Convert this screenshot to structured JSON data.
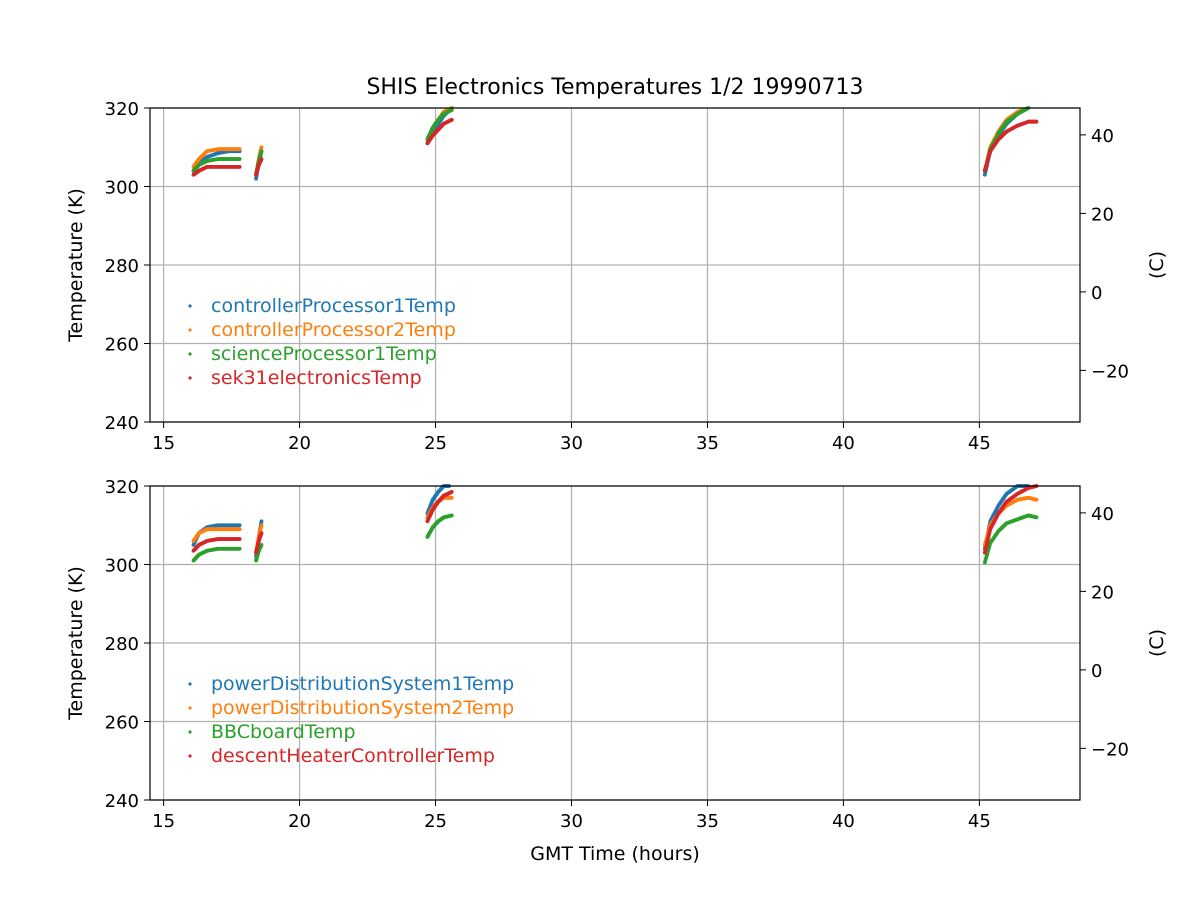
{
  "figure": {
    "title": "SHIS Electronics Temperatures 1/2 19990713",
    "xlabel": "GMT Time (hours)"
  },
  "chart_data": [
    {
      "type": "scatter",
      "panel": "top",
      "ylabel": "Temperature (K)",
      "ylabel_right": "(C)",
      "xlim": [
        14.5,
        48.7
      ],
      "ylim": [
        240,
        320
      ],
      "ylim_right": [
        -33.15,
        46.85
      ],
      "xticks": [
        "15",
        "20",
        "25",
        "30",
        "35",
        "40",
        "45"
      ],
      "yticks": [
        "240",
        "260",
        "280",
        "300",
        "320"
      ],
      "yticks_right": [
        "−20",
        "0",
        "20",
        "40"
      ],
      "grid": true,
      "legend_position": "lower-left",
      "series": [
        {
          "name": "controllerProcessor1Temp",
          "color": "#1f77b4",
          "segments": [
            {
              "x": [
                16.1,
                16.3,
                16.6,
                17.0,
                17.4,
                17.8
              ],
              "y": [
                304,
                306,
                307.5,
                308.5,
                309,
                309
              ]
            },
            {
              "x": [
                18.4,
                18.5,
                18.6
              ],
              "y": [
                302,
                306,
                309
              ]
            },
            {
              "x": [
                24.7,
                24.9,
                25.1,
                25.3,
                25.6
              ],
              "y": [
                311,
                314,
                316,
                318,
                320
              ]
            },
            {
              "x": [
                45.2,
                45.4,
                45.7,
                46.0,
                46.4,
                46.8
              ],
              "y": [
                303,
                309,
                313,
                316,
                318.5,
                320
              ]
            }
          ]
        },
        {
          "name": "controllerProcessor2Temp",
          "color": "#ff7f0e",
          "segments": [
            {
              "x": [
                16.1,
                16.3,
                16.6,
                17.0,
                17.4,
                17.8
              ],
              "y": [
                305,
                307,
                309,
                309.5,
                309.5,
                309.5
              ]
            },
            {
              "x": [
                18.4,
                18.5,
                18.6
              ],
              "y": [
                303,
                307,
                310
              ]
            },
            {
              "x": [
                24.7,
                24.9,
                25.1,
                25.3,
                25.6
              ],
              "y": [
                312,
                315,
                317,
                319,
                320
              ]
            },
            {
              "x": [
                45.2,
                45.4,
                45.7,
                46.0,
                46.4,
                46.8
              ],
              "y": [
                304,
                310,
                314,
                317,
                319,
                320
              ]
            }
          ]
        },
        {
          "name": "scienceProcessor1Temp",
          "color": "#2ca02c",
          "segments": [
            {
              "x": [
                16.1,
                16.3,
                16.6,
                17.0,
                17.4,
                17.8
              ],
              "y": [
                304,
                305.5,
                306.5,
                307,
                307,
                307
              ]
            },
            {
              "x": [
                18.4,
                18.5,
                18.6
              ],
              "y": [
                303,
                306.5,
                309
              ]
            },
            {
              "x": [
                24.7,
                24.9,
                25.1,
                25.3,
                25.6
              ],
              "y": [
                312,
                315,
                317,
                318.5,
                319.5
              ]
            },
            {
              "x": [
                45.2,
                45.4,
                45.7,
                46.0,
                46.4,
                46.8
              ],
              "y": [
                304,
                309.5,
                313.5,
                316.5,
                318.5,
                320
              ]
            }
          ]
        },
        {
          "name": "sek31electronicsTemp",
          "color": "#d62728",
          "segments": [
            {
              "x": [
                16.1,
                16.3,
                16.6,
                17.0,
                17.4,
                17.8
              ],
              "y": [
                303,
                304,
                305,
                305,
                305,
                305
              ]
            },
            {
              "x": [
                18.4,
                18.5,
                18.6
              ],
              "y": [
                303,
                305.5,
                307
              ]
            },
            {
              "x": [
                24.7,
                24.9,
                25.1,
                25.3,
                25.6
              ],
              "y": [
                311,
                313,
                314.5,
                316,
                317
              ]
            },
            {
              "x": [
                45.2,
                45.4,
                45.7,
                46.0,
                46.4,
                46.8,
                47.1
              ],
              "y": [
                304,
                309,
                312,
                314,
                315.5,
                316.5,
                316.5
              ]
            }
          ]
        }
      ]
    },
    {
      "type": "scatter",
      "panel": "bottom",
      "ylabel": "Temperature (K)",
      "ylabel_right": "(C)",
      "xlim": [
        14.5,
        48.7
      ],
      "ylim": [
        240,
        320
      ],
      "ylim_right": [
        -33.15,
        46.85
      ],
      "xticks": [
        "15",
        "20",
        "25",
        "30",
        "35",
        "40",
        "45"
      ],
      "yticks": [
        "240",
        "260",
        "280",
        "300",
        "320"
      ],
      "yticks_right": [
        "−20",
        "0",
        "20",
        "40"
      ],
      "grid": true,
      "legend_position": "lower-left",
      "series": [
        {
          "name": "powerDistributionSystem1Temp",
          "color": "#1f77b4",
          "segments": [
            {
              "x": [
                16.1,
                16.3,
                16.6,
                17.0,
                17.4,
                17.8
              ],
              "y": [
                305,
                308,
                309.5,
                310,
                310,
                310
              ]
            },
            {
              "x": [
                18.4,
                18.5,
                18.6
              ],
              "y": [
                302,
                307,
                311
              ]
            },
            {
              "x": [
                24.7,
                24.9,
                25.1,
                25.3,
                25.5
              ],
              "y": [
                313,
                316.5,
                318.5,
                320,
                320
              ]
            },
            {
              "x": [
                45.2,
                45.4,
                45.7,
                46.0,
                46.4,
                46.8
              ],
              "y": [
                304,
                311,
                315,
                318,
                320,
                320
              ]
            }
          ]
        },
        {
          "name": "powerDistributionSystem2Temp",
          "color": "#ff7f0e",
          "segments": [
            {
              "x": [
                16.1,
                16.3,
                16.6,
                17.0,
                17.4,
                17.8
              ],
              "y": [
                306,
                308,
                309,
                309,
                309,
                309
              ]
            },
            {
              "x": [
                18.4,
                18.5,
                18.6
              ],
              "y": [
                303,
                307,
                310
              ]
            },
            {
              "x": [
                24.7,
                24.9,
                25.1,
                25.3,
                25.6
              ],
              "y": [
                312,
                314.5,
                316,
                317,
                317
              ]
            },
            {
              "x": [
                45.2,
                45.4,
                45.7,
                46.0,
                46.4,
                46.8,
                47.1
              ],
              "y": [
                305,
                310,
                313,
                315,
                316.5,
                317,
                316.5
              ]
            }
          ]
        },
        {
          "name": "BBCboardTemp",
          "color": "#2ca02c",
          "segments": [
            {
              "x": [
                16.1,
                16.3,
                16.6,
                17.0,
                17.4,
                17.8
              ],
              "y": [
                301,
                302.5,
                303.5,
                304,
                304,
                304
              ]
            },
            {
              "x": [
                18.4,
                18.5,
                18.6
              ],
              "y": [
                301,
                303.5,
                305
              ]
            },
            {
              "x": [
                24.7,
                24.9,
                25.1,
                25.3,
                25.6
              ],
              "y": [
                307,
                309.5,
                311,
                312,
                312.5
              ]
            },
            {
              "x": [
                45.2,
                45.4,
                45.7,
                46.0,
                46.4,
                46.8,
                47.1
              ],
              "y": [
                300.5,
                305.5,
                308.5,
                310.5,
                311.5,
                312.5,
                312
              ]
            }
          ]
        },
        {
          "name": "descentHeaterControllerTemp",
          "color": "#d62728",
          "segments": [
            {
              "x": [
                16.1,
                16.3,
                16.6,
                17.0,
                17.4,
                17.8
              ],
              "y": [
                303.5,
                305,
                306,
                306.5,
                306.5,
                306.5
              ]
            },
            {
              "x": [
                18.4,
                18.5,
                18.6
              ],
              "y": [
                303,
                306,
                308
              ]
            },
            {
              "x": [
                24.7,
                24.9,
                25.1,
                25.3,
                25.6
              ],
              "y": [
                311,
                314,
                316,
                317.5,
                318.5
              ]
            },
            {
              "x": [
                45.2,
                45.4,
                45.7,
                46.0,
                46.4,
                46.8,
                47.1
              ],
              "y": [
                303,
                309,
                313,
                316,
                318,
                319.5,
                320
              ]
            }
          ]
        }
      ]
    }
  ]
}
